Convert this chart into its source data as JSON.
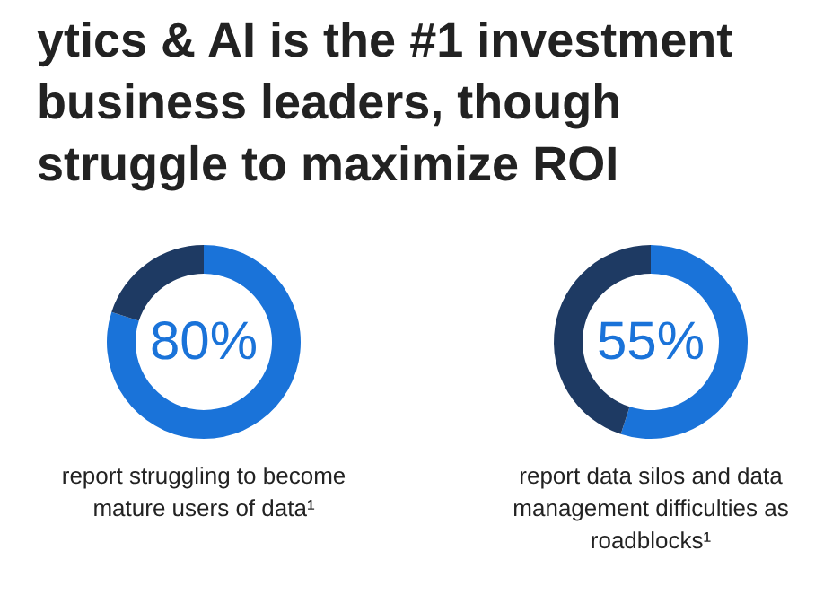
{
  "chart_data": [
    {
      "type": "donut",
      "title": "ytics & AI is the #1 investment\nbusiness leaders, though\nstruggle to maximize ROI",
      "categories": [
        null,
        null
      ],
      "values": [
        80,
        20
      ],
      "colors": [
        "#1a73d9",
        "#1e3a63"
      ],
      "annotations": [
        "80%",
        "report struggling to become mature users of data¹"
      ]
    },
    {
      "type": "donut",
      "categories": [
        null,
        null
      ],
      "values": [
        55,
        45
      ],
      "colors": [
        "#1a73d9",
        "#1e3a63"
      ],
      "annotations": [
        "55%",
        "report data silos and data management difficulties as roadblocks¹"
      ]
    }
  ]
}
